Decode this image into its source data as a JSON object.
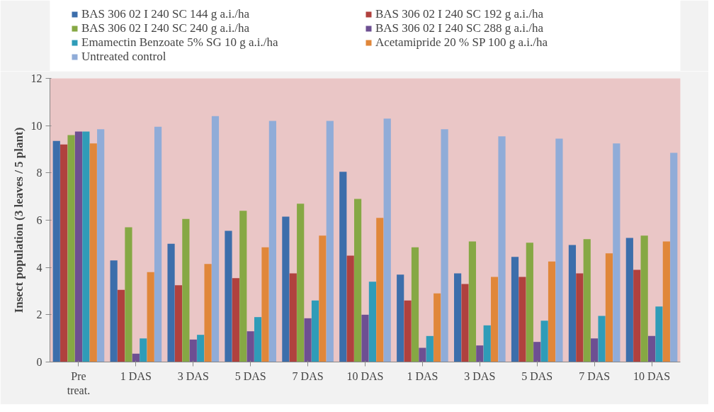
{
  "chart_data": {
    "type": "bar",
    "ylabel": "Insect population (3 leaves / 5 plant)",
    "categories": [
      "Pre\ntreat.",
      "1 DAS",
      "3 DAS",
      "5 DAS",
      "7 DAS",
      "10 DAS",
      "1 DAS",
      "3 DAS",
      "5 DAS",
      "7 DAS",
      "10 DAS"
    ],
    "series": [
      {
        "name": "BAS 306 02 I 240 SC 144 g a.i./ha",
        "color": "#3c6eab",
        "values": [
          9.35,
          4.3,
          5.0,
          5.55,
          6.15,
          8.05,
          3.7,
          3.75,
          4.45,
          4.95,
          5.25
        ]
      },
      {
        "name": "BAS 306 02 I 240 SC 192 g a.i./ha",
        "color": "#b0413e",
        "values": [
          9.2,
          3.05,
          3.25,
          3.55,
          3.75,
          4.5,
          2.6,
          3.3,
          3.6,
          3.75,
          3.9
        ]
      },
      {
        "name": "BAS 306 02 I 240 SC 240 g a.i./ha",
        "color": "#86a844",
        "values": [
          9.6,
          5.7,
          6.05,
          6.4,
          6.7,
          6.9,
          4.85,
          5.1,
          5.05,
          5.2,
          5.35
        ]
      },
      {
        "name": "BAS 306 02 I 240 SC 288 g a.i./ha",
        "color": "#6d4f92",
        "values": [
          9.75,
          0.35,
          0.95,
          1.3,
          1.85,
          2.0,
          0.6,
          0.7,
          0.85,
          1.0,
          1.1
        ]
      },
      {
        "name": "Emamectin Benzoate 5% SG 10 g a.i./ha",
        "color": "#2f9cb8",
        "values": [
          9.75,
          1.0,
          1.15,
          1.9,
          2.6,
          3.4,
          1.1,
          1.55,
          1.75,
          1.95,
          2.35
        ]
      },
      {
        "name": "Acetamipride 20 % SP 100 g a.i./ha",
        "color": "#e0873a",
        "values": [
          9.25,
          3.8,
          4.15,
          4.85,
          5.35,
          6.1,
          2.9,
          3.6,
          4.25,
          4.6,
          5.1
        ]
      },
      {
        "name": "Untreated control",
        "color": "#90acd8",
        "values": [
          9.85,
          9.95,
          10.4,
          10.2,
          10.2,
          10.3,
          9.85,
          9.55,
          9.45,
          9.25,
          8.85
        ]
      }
    ],
    "ylim": [
      0,
      12
    ],
    "yticks": [
      0,
      2,
      4,
      6,
      8,
      10,
      12
    ],
    "grid": false,
    "legend": "top"
  }
}
